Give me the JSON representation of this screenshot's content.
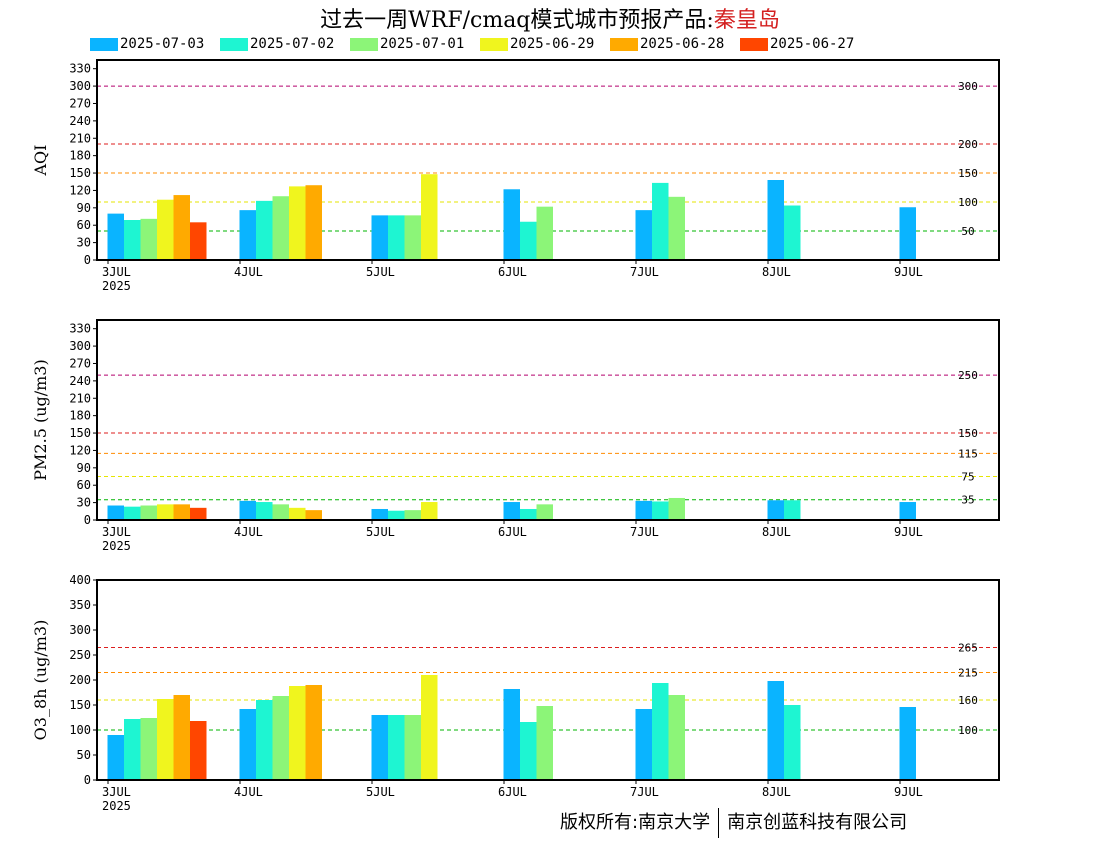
{
  "title": {
    "main": "过去一周WRF/cmaq模式城市预报产品:",
    "city": "秦皇岛"
  },
  "colors": {
    "series": [
      "#0ab4ff",
      "#1ef5d2",
      "#8cf578",
      "#f0f51e",
      "#ffaa00",
      "#ff4600"
    ],
    "ref_green": "#00b400",
    "ref_yellow": "#e6e600",
    "ref_orange": "#ff8c00",
    "ref_red": "#dc1e1e",
    "ref_purple": "#b4006e"
  },
  "copyright": {
    "left": "版权所有:南京大学",
    "right": "南京创蓝科技有限公司"
  },
  "chart_data": [
    {
      "type": "bar",
      "ylabel": "AQI",
      "ylim": [
        0,
        345
      ],
      "yticks": [
        0,
        30,
        60,
        90,
        120,
        150,
        180,
        210,
        240,
        270,
        300,
        330
      ],
      "x_days": [
        "3JUL",
        "4JUL",
        "5JUL",
        "6JUL",
        "7JUL",
        "8JUL",
        "9JUL"
      ],
      "x_year": "2025",
      "ref_lines": [
        {
          "value": 50,
          "label": "50",
          "color": "green"
        },
        {
          "value": 100,
          "label": "100",
          "color": "yellow"
        },
        {
          "value": 150,
          "label": "150",
          "color": "orange"
        },
        {
          "value": 200,
          "label": "200",
          "color": "red"
        },
        {
          "value": 300,
          "label": "300",
          "color": "purple"
        }
      ],
      "series": [
        {
          "name": "2025-07-03",
          "values": [
            80,
            86,
            77,
            122,
            86,
            138,
            91
          ]
        },
        {
          "name": "2025-07-02",
          "values": [
            69,
            102,
            77,
            66,
            133,
            94,
            null
          ]
        },
        {
          "name": "2025-07-01",
          "values": [
            71,
            110,
            77,
            92,
            109,
            null,
            null
          ]
        },
        {
          "name": "2025-06-29",
          "values": [
            104,
            127,
            148,
            null,
            null,
            null,
            null
          ]
        },
        {
          "name": "2025-06-28",
          "values": [
            112,
            129,
            null,
            null,
            null,
            null,
            null
          ]
        },
        {
          "name": "2025-06-27",
          "values": [
            65,
            null,
            null,
            null,
            null,
            null,
            null
          ]
        }
      ]
    },
    {
      "type": "bar",
      "ylabel": "PM2.5 (ug/m3)",
      "ylim": [
        0,
        345
      ],
      "yticks": [
        0,
        30,
        60,
        90,
        120,
        150,
        180,
        210,
        240,
        270,
        300,
        330
      ],
      "x_days": [
        "3JUL",
        "4JUL",
        "5JUL",
        "6JUL",
        "7JUL",
        "8JUL",
        "9JUL"
      ],
      "x_year": "2025",
      "ref_lines": [
        {
          "value": 35,
          "label": "35",
          "color": "green"
        },
        {
          "value": 75,
          "label": "75",
          "color": "yellow"
        },
        {
          "value": 115,
          "label": "115",
          "color": "orange"
        },
        {
          "value": 150,
          "label": "150",
          "color": "red"
        },
        {
          "value": 250,
          "label": "250",
          "color": "purple"
        }
      ],
      "series": [
        {
          "name": "2025-07-03",
          "values": [
            25,
            33,
            19,
            31,
            33,
            34,
            31
          ]
        },
        {
          "name": "2025-07-02",
          "values": [
            23,
            31,
            16,
            19,
            32,
            34,
            null
          ]
        },
        {
          "name": "2025-07-01",
          "values": [
            25,
            27,
            17,
            27,
            38,
            null,
            null
          ]
        },
        {
          "name": "2025-06-29",
          "values": [
            27,
            21,
            31,
            null,
            null,
            null,
            null
          ]
        },
        {
          "name": "2025-06-28",
          "values": [
            27,
            17,
            null,
            null,
            null,
            null,
            null
          ]
        },
        {
          "name": "2025-06-27",
          "values": [
            21,
            null,
            null,
            null,
            null,
            null,
            null
          ]
        }
      ]
    },
    {
      "type": "bar",
      "ylabel": "O3_8h (ug/m3)",
      "ylim": [
        0,
        400
      ],
      "yticks": [
        0,
        50,
        100,
        150,
        200,
        250,
        300,
        350,
        400
      ],
      "x_days": [
        "3JUL",
        "4JUL",
        "5JUL",
        "6JUL",
        "7JUL",
        "8JUL",
        "9JUL"
      ],
      "x_year": "2025",
      "ref_lines": [
        {
          "value": 100,
          "label": "100",
          "color": "green"
        },
        {
          "value": 160,
          "label": "160",
          "color": "yellow"
        },
        {
          "value": 215,
          "label": "215",
          "color": "orange"
        },
        {
          "value": 265,
          "label": "265",
          "color": "red"
        }
      ],
      "series": [
        {
          "name": "2025-07-03",
          "values": [
            90,
            142,
            130,
            182,
            142,
            198,
            146
          ]
        },
        {
          "name": "2025-07-02",
          "values": [
            122,
            160,
            130,
            116,
            194,
            150,
            null
          ]
        },
        {
          "name": "2025-07-01",
          "values": [
            124,
            168,
            130,
            148,
            170,
            null,
            null
          ]
        },
        {
          "name": "2025-06-29",
          "values": [
            162,
            188,
            210,
            null,
            null,
            null,
            null
          ]
        },
        {
          "name": "2025-06-28",
          "values": [
            170,
            190,
            null,
            null,
            null,
            null,
            null
          ]
        },
        {
          "name": "2025-06-27",
          "values": [
            118,
            null,
            null,
            null,
            null,
            null,
            null
          ]
        }
      ]
    }
  ]
}
